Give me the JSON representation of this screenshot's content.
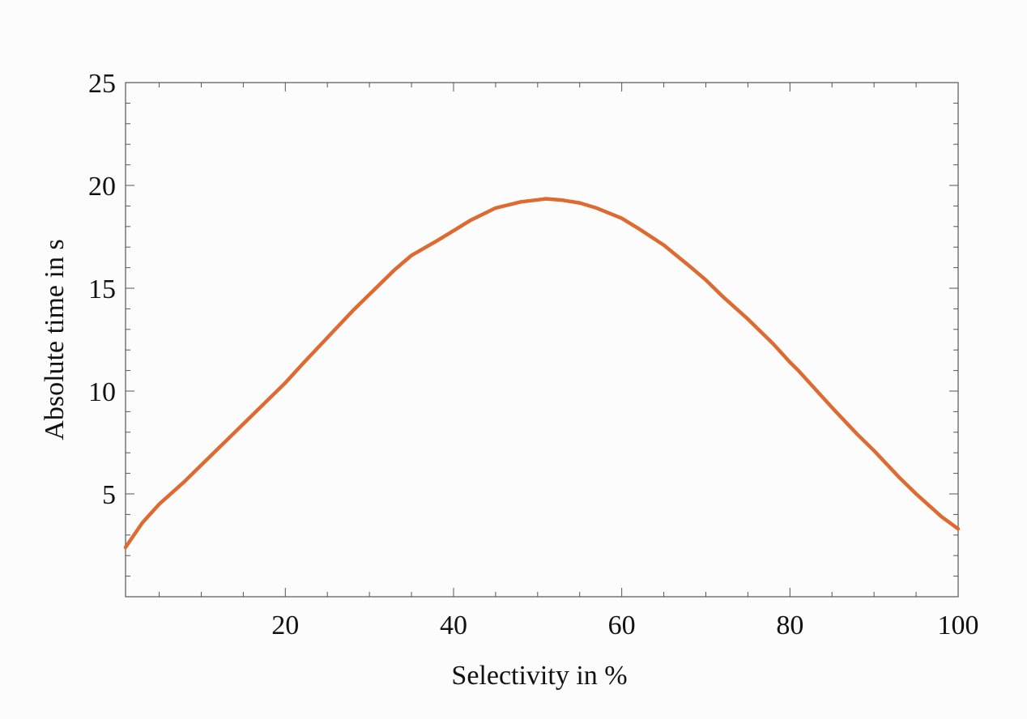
{
  "chart_data": {
    "type": "line",
    "title": "",
    "xlabel": "Selectivity in %",
    "ylabel": "Absolute time in s",
    "xlim": [
      1,
      100
    ],
    "ylim": [
      0,
      25
    ],
    "x_ticks": [
      20,
      40,
      60,
      80,
      100
    ],
    "y_ticks": [
      5,
      10,
      15,
      20,
      25
    ],
    "x_minor_step": 5,
    "y_minor_step": 1,
    "grid": false,
    "colors": {
      "line": "#dd6a30",
      "frame": "#555555",
      "text": "#111111"
    },
    "series": [
      {
        "x": [
          1,
          3,
          5,
          8,
          10,
          12,
          13,
          15,
          18,
          20,
          22,
          25,
          28,
          30,
          33,
          35,
          38,
          40,
          42,
          45,
          48,
          50,
          51,
          53,
          55,
          57,
          60,
          62,
          65,
          68,
          70,
          72,
          75,
          78,
          80,
          81,
          83,
          85,
          88,
          90,
          93,
          95,
          98,
          100
        ],
        "y": [
          2.4,
          3.6,
          4.5,
          5.6,
          6.4,
          7.2,
          7.6,
          8.4,
          9.6,
          10.4,
          11.3,
          12.6,
          13.9,
          14.7,
          15.9,
          16.6,
          17.3,
          17.8,
          18.3,
          18.9,
          19.2,
          19.3,
          19.35,
          19.28,
          19.15,
          18.9,
          18.4,
          17.9,
          17.1,
          16.1,
          15.4,
          14.6,
          13.5,
          12.3,
          11.4,
          11.0,
          10.1,
          9.2,
          7.9,
          7.1,
          5.8,
          5.0,
          3.9,
          3.3
        ]
      }
    ]
  }
}
